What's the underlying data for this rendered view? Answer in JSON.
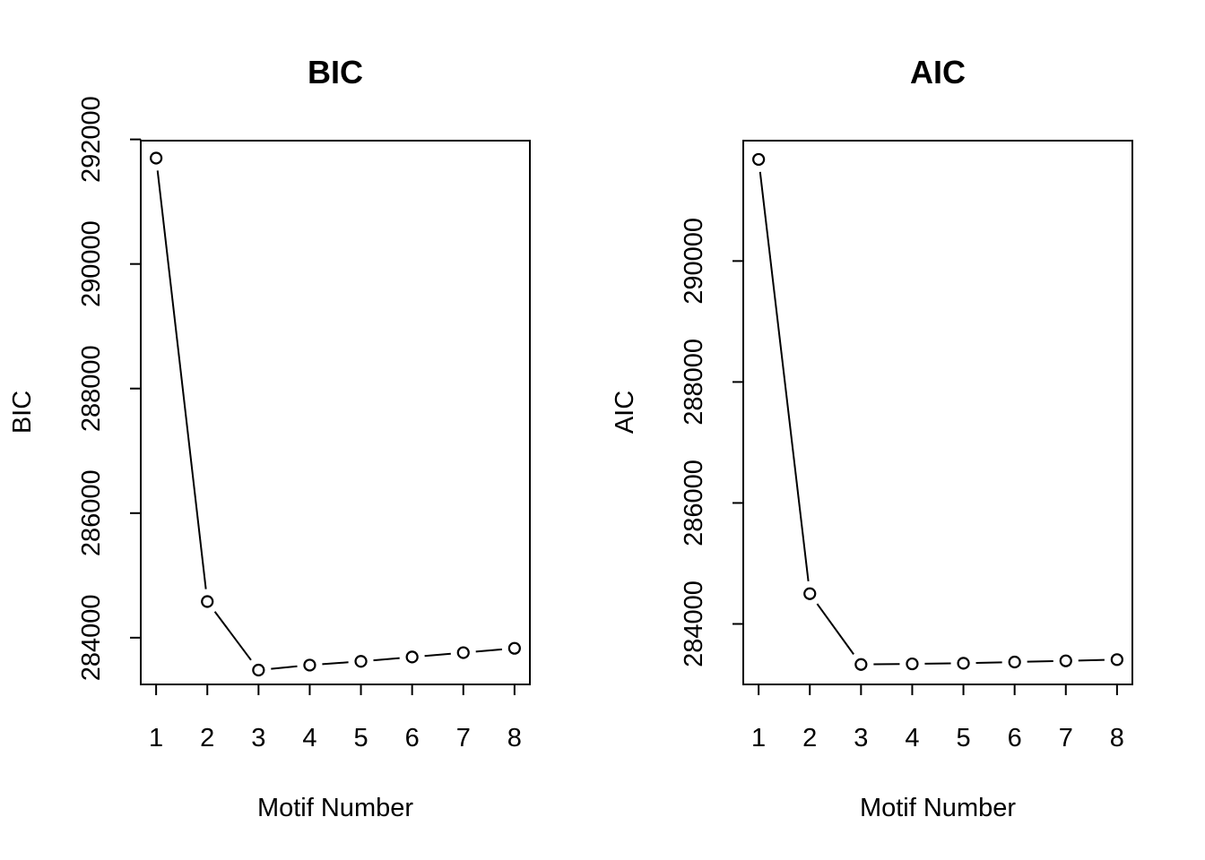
{
  "chart_data": [
    {
      "type": "line",
      "title": "BIC",
      "xlabel": "Motif Number",
      "ylabel": "BIC",
      "x": [
        1,
        2,
        3,
        4,
        5,
        6,
        7,
        8
      ],
      "values": [
        291700,
        284580,
        283480,
        283560,
        283620,
        283690,
        283760,
        283830
      ],
      "xlim": [
        0.7,
        8.3
      ],
      "ylim": [
        283250,
        291980
      ],
      "xticks": [
        1,
        2,
        3,
        4,
        5,
        6,
        7,
        8
      ],
      "yticks": [
        284000,
        286000,
        288000,
        290000,
        292000
      ],
      "xtick_labels": [
        "1",
        "2",
        "3",
        "4",
        "5",
        "6",
        "7",
        "8"
      ],
      "ytick_labels": [
        "284000",
        "286000",
        "288000",
        "290000",
        "292000"
      ],
      "markers": "open-circle",
      "grid": false
    },
    {
      "type": "line",
      "title": "AIC",
      "xlabel": "Motif Number",
      "ylabel": "AIC",
      "x": [
        1,
        2,
        3,
        4,
        5,
        6,
        7,
        8
      ],
      "values": [
        291680,
        284500,
        283330,
        283340,
        283350,
        283370,
        283390,
        283410
      ],
      "xlim": [
        0.7,
        8.3
      ],
      "ylim": [
        283000,
        291990
      ],
      "xticks": [
        1,
        2,
        3,
        4,
        5,
        6,
        7,
        8
      ],
      "yticks": [
        284000,
        286000,
        288000,
        290000
      ],
      "xtick_labels": [
        "1",
        "2",
        "3",
        "4",
        "5",
        "6",
        "7",
        "8"
      ],
      "ytick_labels": [
        "284000",
        "286000",
        "288000",
        "290000"
      ],
      "markers": "open-circle",
      "grid": false
    }
  ]
}
